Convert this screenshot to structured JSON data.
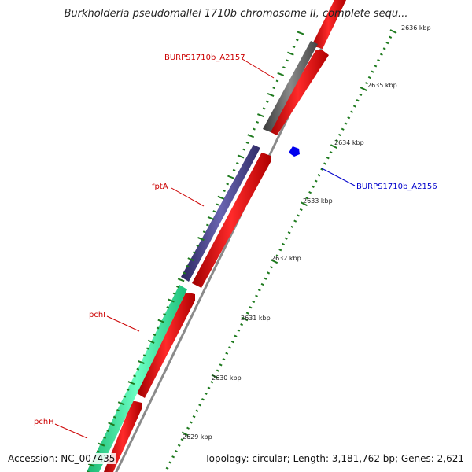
{
  "title": "Burkholderia pseudomallei 1710b chromosome II, complete sequ...",
  "footer": {
    "accession": "Accession: NC_007435",
    "summary": "Topology: circular; Length: 3,181,762 bp; Genes: 2,621"
  },
  "scale_labels": [
    "2636 kbp",
    "2635 kbp",
    "2634 kbp",
    "2633 kbp",
    "2632 kbp",
    "2631 kbp",
    "2630 kbp",
    "2629 kbp"
  ],
  "gene_labels": [
    {
      "name": "BURPS1710b_A2157",
      "color": "#cc0000"
    },
    {
      "name": "fptA",
      "color": "#cc0000"
    },
    {
      "name": "pchI",
      "color": "#cc0000"
    },
    {
      "name": "pchH",
      "color": "#cc0000"
    },
    {
      "name": "BURPS1710b_A2156",
      "color": "#0000cc"
    }
  ],
  "colors": {
    "cds": "#ee1111",
    "gray_gene": "#666666",
    "purple_gene": "#4a4590",
    "green_gene": "#33e89a",
    "backbone": "#8a8a8a",
    "tick_green": "#1e7a1e",
    "marker_blue": "#0000ee"
  }
}
